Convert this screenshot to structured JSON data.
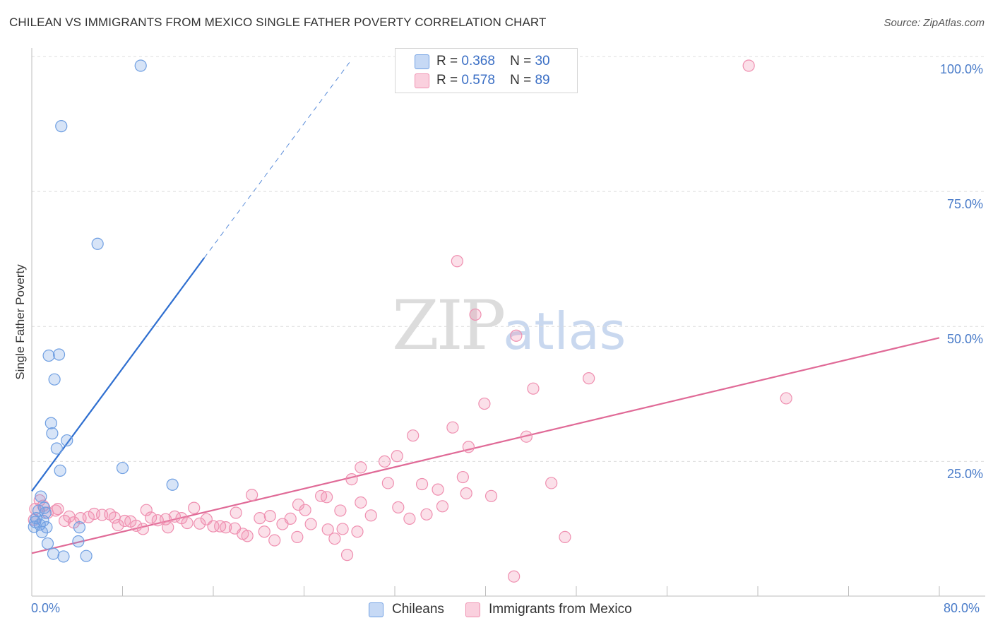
{
  "title": "CHILEAN VS IMMIGRANTS FROM MEXICO SINGLE FATHER POVERTY CORRELATION CHART",
  "source": "Source: ZipAtlas.com",
  "watermark": {
    "zip": "ZIP",
    "atlas": "atlas"
  },
  "legend": {
    "r_label": "R =",
    "n_label": "N =",
    "rows": [
      {
        "r": "0.368",
        "n": "30"
      },
      {
        "r": "0.578",
        "n": "89"
      }
    ]
  },
  "bottom_legend": [
    "Chileans",
    "Immigrants from Mexico"
  ],
  "chart_data": {
    "type": "scatter",
    "title": "CHILEAN VS IMMIGRANTS FROM MEXICO SINGLE FATHER POVERTY CORRELATION CHART",
    "xlabel": "",
    "ylabel": "Single Father Poverty",
    "xlim": [
      0,
      80
    ],
    "ylim": [
      0,
      104
    ],
    "x_tick_labels": [
      "0.0%",
      "80.0%"
    ],
    "y_ticks": [
      25,
      50,
      75,
      100
    ],
    "y_tick_labels": [
      "25.0%",
      "50.0%",
      "75.0%",
      "100.0%"
    ],
    "colors": {
      "chileans": "#6f9fe2",
      "mexico": "#ef8fb0",
      "chileans_line": "#2f6fd0",
      "mexico_line": "#e06a97"
    },
    "series": [
      {
        "name": "Chileans",
        "r": 0.368,
        "n": 30,
        "trend": {
          "x0": 0.0,
          "y0": 19.5,
          "x1": 15.2,
          "y1": 62.7,
          "dash_to_x": 28.0,
          "dash_to_y": 98.9
        },
        "points": [
          [
            9.6,
            98.3
          ],
          [
            2.6,
            87.1
          ],
          [
            5.8,
            65.3
          ],
          [
            1.5,
            44.6
          ],
          [
            2.4,
            44.8
          ],
          [
            2.0,
            40.2
          ],
          [
            1.7,
            32.1
          ],
          [
            1.8,
            30.2
          ],
          [
            3.1,
            28.9
          ],
          [
            2.2,
            27.4
          ],
          [
            8.0,
            23.8
          ],
          [
            2.5,
            23.3
          ],
          [
            12.4,
            20.7
          ],
          [
            0.8,
            18.5
          ],
          [
            1.1,
            16.4
          ],
          [
            1.2,
            15.5
          ],
          [
            0.6,
            15.9
          ],
          [
            0.4,
            14.5
          ],
          [
            1.0,
            14.0
          ],
          [
            0.3,
            13.8
          ],
          [
            0.7,
            13.3
          ],
          [
            0.2,
            12.9
          ],
          [
            1.3,
            12.8
          ],
          [
            0.9,
            11.9
          ],
          [
            4.2,
            12.8
          ],
          [
            1.4,
            9.8
          ],
          [
            4.1,
            10.2
          ],
          [
            1.9,
            7.9
          ],
          [
            2.8,
            7.4
          ],
          [
            4.8,
            7.5
          ]
        ]
      },
      {
        "name": "Immigrants from Mexico",
        "r": 0.578,
        "n": 89,
        "trend": {
          "x0": 0.0,
          "y0": 8.0,
          "x1": 80.0,
          "y1": 47.9
        },
        "points": [
          [
            63.2,
            98.3
          ],
          [
            37.5,
            62.1
          ],
          [
            39.1,
            52.2
          ],
          [
            42.7,
            48.3
          ],
          [
            49.1,
            40.4
          ],
          [
            44.2,
            38.5
          ],
          [
            66.5,
            36.7
          ],
          [
            39.9,
            35.7
          ],
          [
            37.1,
            31.3
          ],
          [
            33.6,
            29.8
          ],
          [
            43.6,
            29.6
          ],
          [
            38.5,
            27.7
          ],
          [
            32.2,
            26.0
          ],
          [
            31.1,
            25.0
          ],
          [
            29.0,
            23.9
          ],
          [
            38.0,
            22.1
          ],
          [
            28.2,
            21.7
          ],
          [
            31.4,
            21.0
          ],
          [
            34.4,
            20.8
          ],
          [
            35.8,
            19.8
          ],
          [
            38.3,
            19.1
          ],
          [
            45.8,
            21.0
          ],
          [
            40.5,
            18.6
          ],
          [
            19.4,
            18.8
          ],
          [
            25.5,
            18.6
          ],
          [
            26.0,
            18.4
          ],
          [
            29.0,
            17.4
          ],
          [
            36.2,
            16.7
          ],
          [
            32.3,
            16.5
          ],
          [
            23.5,
            17.0
          ],
          [
            14.3,
            16.4
          ],
          [
            10.1,
            16.0
          ],
          [
            24.1,
            16.0
          ],
          [
            27.2,
            15.9
          ],
          [
            34.8,
            15.2
          ],
          [
            18.0,
            15.5
          ],
          [
            29.9,
            15.0
          ],
          [
            21.0,
            14.9
          ],
          [
            22.8,
            14.4
          ],
          [
            20.1,
            14.5
          ],
          [
            33.3,
            14.4
          ],
          [
            22.1,
            13.4
          ],
          [
            24.6,
            13.4
          ],
          [
            26.1,
            12.4
          ],
          [
            20.5,
            12.0
          ],
          [
            27.4,
            12.5
          ],
          [
            28.7,
            12.0
          ],
          [
            5.5,
            15.3
          ],
          [
            6.2,
            15.1
          ],
          [
            6.9,
            15.2
          ],
          [
            5.0,
            14.7
          ],
          [
            4.3,
            14.5
          ],
          [
            3.3,
            14.8
          ],
          [
            7.3,
            14.6
          ],
          [
            8.2,
            14.0
          ],
          [
            10.5,
            14.6
          ],
          [
            11.8,
            14.3
          ],
          [
            13.2,
            14.5
          ],
          [
            12.6,
            14.8
          ],
          [
            15.4,
            14.3
          ],
          [
            8.7,
            13.9
          ],
          [
            11.1,
            14.1
          ],
          [
            13.7,
            13.6
          ],
          [
            14.8,
            13.5
          ],
          [
            16.0,
            13.0
          ],
          [
            16.6,
            13.0
          ],
          [
            9.2,
            13.1
          ],
          [
            7.6,
            13.2
          ],
          [
            9.8,
            12.5
          ],
          [
            12.0,
            12.8
          ],
          [
            17.1,
            12.8
          ],
          [
            17.9,
            12.6
          ],
          [
            3.7,
            13.7
          ],
          [
            2.9,
            14.0
          ],
          [
            18.6,
            11.6
          ],
          [
            2.1,
            15.9
          ],
          [
            0.7,
            17.8
          ],
          [
            1.4,
            15.5
          ],
          [
            0.3,
            16.2
          ],
          [
            1.0,
            16.8
          ],
          [
            2.3,
            16.2
          ],
          [
            19.0,
            11.2
          ],
          [
            21.4,
            10.4
          ],
          [
            23.4,
            11.0
          ],
          [
            26.7,
            10.7
          ],
          [
            27.8,
            7.7
          ],
          [
            47.0,
            11.0
          ],
          [
            42.5,
            3.7
          ],
          [
            0.2,
            14.2
          ]
        ]
      }
    ]
  }
}
